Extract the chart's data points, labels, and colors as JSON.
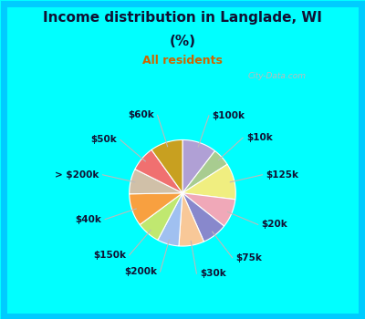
{
  "title_line1": "Income distribution in Langlade, WI",
  "title_line2": "(%)",
  "subtitle": "All residents",
  "labels": [
    "$100k",
    "$10k",
    "$125k",
    "$20k",
    "$75k",
    "$30k",
    "$200k",
    "$150k",
    "$40k",
    "> $200k",
    "$50k",
    "$60k"
  ],
  "values": [
    9.5,
    5.0,
    10.0,
    8.0,
    7.0,
    7.0,
    6.0,
    6.5,
    9.0,
    7.0,
    7.0,
    9.0
  ],
  "colors": [
    "#b0a0d5",
    "#a8cc90",
    "#f0ee80",
    "#f0a8b8",
    "#8888cc",
    "#f8c898",
    "#a0c0f0",
    "#c0e870",
    "#f8a040",
    "#d0c0a8",
    "#f07070",
    "#c8a020"
  ],
  "start_angle": 90,
  "figsize": [
    4.0,
    3.5
  ],
  "dpi": 100,
  "chart_bg": "#dff0e8",
  "header_bg": "#00ffff",
  "border_color": "#00ccff",
  "title_color": "#111133",
  "subtitle_color": "#cc6600",
  "label_color": "#111133",
  "watermark": "City-Data.com"
}
